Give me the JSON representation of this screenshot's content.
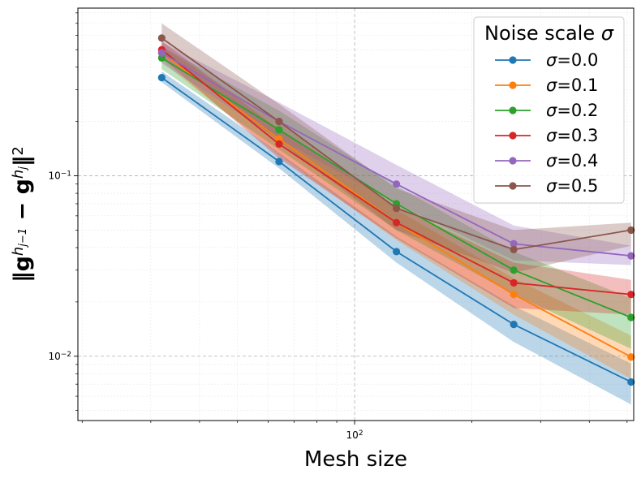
{
  "chart_data": {
    "type": "line",
    "title": "",
    "xlabel": "Mesh size",
    "ylabel_parts": {
      "open": "‖g",
      "sup1": "h",
      "sub1": "j−1",
      "minus": " − g",
      "sup2": "h",
      "sub2": "j",
      "close": "‖",
      "power": "2"
    },
    "xscale": "log",
    "yscale": "log",
    "xlim": [
      19.5,
      520
    ],
    "ylim": [
      0.0044,
      0.85
    ],
    "x": [
      32,
      64,
      128,
      256,
      512
    ],
    "x_major_ticks": [
      {
        "value": 100,
        "base": "10",
        "exp": "2"
      }
    ],
    "y_major_ticks": [
      {
        "value": 0.1,
        "base": "10",
        "exp": "−1"
      },
      {
        "value": 0.01,
        "base": "10",
        "exp": "−2"
      }
    ],
    "grid": true,
    "legend": {
      "placement": "top-right",
      "title_text": "Noise scale ",
      "title_symbol": "σ"
    },
    "series": [
      {
        "name": "σ=0.0",
        "symbol": "σ",
        "label_value": "=0.0",
        "color": "#1f77b4",
        "values": [
          0.35,
          0.12,
          0.038,
          0.015,
          0.0072
        ],
        "lower": [
          0.33,
          0.11,
          0.033,
          0.012,
          0.0054
        ],
        "upper": [
          0.38,
          0.134,
          0.046,
          0.019,
          0.0091
        ]
      },
      {
        "name": "σ=0.1",
        "symbol": "σ",
        "label_value": "=0.1",
        "color": "#ff7f0e",
        "values": [
          0.48,
          0.16,
          0.055,
          0.022,
          0.0099
        ],
        "lower": [
          0.43,
          0.13,
          0.044,
          0.017,
          0.0075
        ],
        "upper": [
          0.52,
          0.2,
          0.065,
          0.027,
          0.013
        ]
      },
      {
        "name": "σ=0.2",
        "symbol": "σ",
        "label_value": "=0.2",
        "color": "#2ca02c",
        "values": [
          0.45,
          0.18,
          0.07,
          0.03,
          0.0164
        ],
        "lower": [
          0.39,
          0.14,
          0.05,
          0.022,
          0.011
        ],
        "upper": [
          0.52,
          0.23,
          0.088,
          0.038,
          0.021
        ]
      },
      {
        "name": "σ=0.3",
        "symbol": "σ",
        "label_value": "=0.3",
        "color": "#d62728",
        "values": [
          0.5,
          0.15,
          0.055,
          0.0255,
          0.022
        ],
        "lower": [
          0.45,
          0.125,
          0.045,
          0.0185,
          0.017
        ],
        "upper": [
          0.56,
          0.18,
          0.068,
          0.033,
          0.0265
        ]
      },
      {
        "name": "σ=0.4",
        "symbol": "σ",
        "label_value": "=0.4",
        "color": "#9467bd",
        "values": [
          0.48,
          0.2,
          0.09,
          0.042,
          0.036
        ],
        "lower": [
          0.42,
          0.16,
          0.07,
          0.034,
          0.032
        ],
        "upper": [
          0.55,
          0.255,
          0.115,
          0.053,
          0.041
        ]
      },
      {
        "name": "σ=0.5",
        "symbol": "σ",
        "label_value": "=0.5",
        "color": "#8c564b",
        "values": [
          0.58,
          0.2,
          0.066,
          0.039,
          0.05
        ],
        "lower": [
          0.48,
          0.155,
          0.05,
          0.029,
          0.041
        ],
        "upper": [
          0.7,
          0.25,
          0.085,
          0.05,
          0.055
        ]
      }
    ]
  }
}
